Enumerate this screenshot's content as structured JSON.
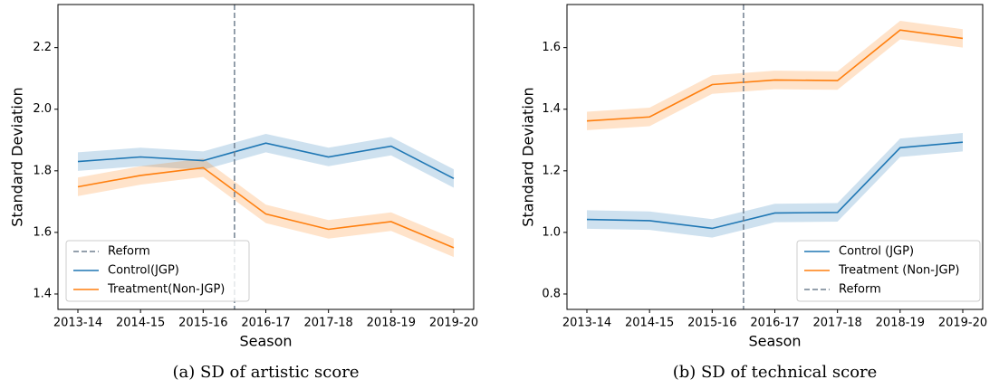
{
  "chart_data": [
    {
      "type": "line",
      "caption": "(a) SD of artistic score",
      "xlabel": "Season",
      "ylabel": "Standard Deviation",
      "categories": [
        "2013-14",
        "2014-15",
        "2015-16",
        "2016-17",
        "2017-18",
        "2018-19",
        "2019-20"
      ],
      "ylim": [
        1.35,
        2.34
      ],
      "yticks": [
        1.4,
        1.6,
        1.8,
        {
          "value": 2,
          "label": "2.0"
        },
        2.2
      ],
      "vline": {
        "name": "Reform",
        "x": 2.5,
        "color": "#708090"
      },
      "legend": "lower left",
      "legend_order": [
        "vline",
        "series"
      ],
      "series": [
        {
          "name": "Control(JGP)",
          "color": "#1f77b4",
          "values": [
            1.83,
            1.845,
            1.833,
            1.89,
            1.845,
            1.88,
            1.775
          ],
          "lower": [
            1.8,
            1.815,
            1.803,
            1.86,
            1.815,
            1.85,
            1.745
          ],
          "upper": [
            1.86,
            1.875,
            1.863,
            1.92,
            1.875,
            1.91,
            1.805
          ]
        },
        {
          "name": "Treatment(Non-JGP)",
          "color": "#ff7f0e",
          "values": [
            1.748,
            1.785,
            1.81,
            1.66,
            1.61,
            1.635,
            1.55
          ],
          "lower": [
            1.718,
            1.755,
            1.78,
            1.63,
            1.58,
            1.605,
            1.52
          ],
          "upper": [
            1.778,
            1.815,
            1.84,
            1.69,
            1.64,
            1.665,
            1.58
          ]
        }
      ]
    },
    {
      "type": "line",
      "caption": "(b) SD of technical score",
      "xlabel": "Season",
      "ylabel": "Standard Deviation",
      "categories": [
        "2013-14",
        "2014-15",
        "2015-16",
        "2016-17",
        "2017-18",
        "2018-19",
        "2019-20"
      ],
      "ylim": [
        0.75,
        1.74
      ],
      "yticks": [
        0.8,
        {
          "value": 1,
          "label": "1.0"
        },
        1.2,
        1.4,
        1.6
      ],
      "vline": {
        "name": "Reform",
        "x": 2.5,
        "color": "#708090"
      },
      "legend": "lower right",
      "legend_order": [
        "series",
        "vline"
      ],
      "series": [
        {
          "name": "Control (JGP)",
          "color": "#1f77b4",
          "values": [
            1.042,
            1.038,
            1.013,
            1.063,
            1.065,
            1.275,
            1.293
          ],
          "lower": [
            1.012,
            1.008,
            0.983,
            1.033,
            1.035,
            1.245,
            1.263
          ],
          "upper": [
            1.072,
            1.068,
            1.043,
            1.093,
            1.095,
            1.305,
            1.323
          ]
        },
        {
          "name": "Treatment (Non-JGP)",
          "color": "#ff7f0e",
          "values": [
            1.362,
            1.375,
            1.48,
            1.495,
            1.493,
            1.657,
            1.63
          ],
          "lower": [
            1.332,
            1.345,
            1.45,
            1.465,
            1.463,
            1.627,
            1.6
          ],
          "upper": [
            1.392,
            1.405,
            1.51,
            1.525,
            1.523,
            1.687,
            1.66
          ]
        }
      ]
    }
  ]
}
